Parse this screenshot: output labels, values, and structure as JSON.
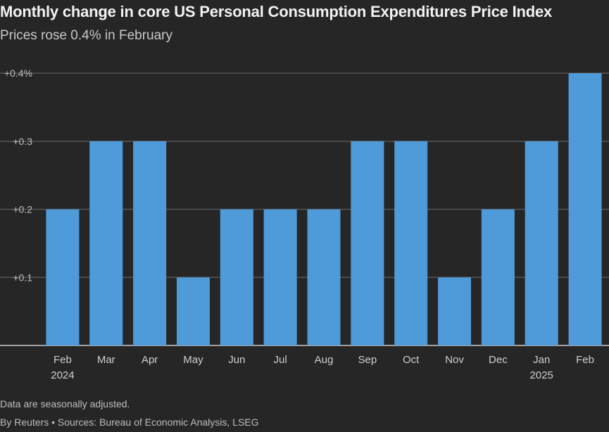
{
  "chart_data": {
    "type": "bar",
    "title": "Monthly change in core US Personal Consumption Expenditures Price Index",
    "subtitle": "Prices rose 0.4% in February",
    "categories": [
      "Feb",
      "Mar",
      "Apr",
      "May",
      "Jun",
      "Jul",
      "Aug",
      "Sep",
      "Oct",
      "Nov",
      "Dec",
      "Jan",
      "Feb"
    ],
    "year_labels": [
      "2024",
      "",
      "",
      "",
      "",
      "",
      "",
      "",
      "",
      "",
      "",
      "2025",
      ""
    ],
    "values": [
      0.2,
      0.3,
      0.3,
      0.1,
      0.2,
      0.2,
      0.2,
      0.3,
      0.3,
      0.1,
      0.2,
      0.3,
      0.4
    ],
    "yticks": [
      {
        "value": 0.4,
        "label": "+0.4%"
      },
      {
        "value": 0.3,
        "label": "+0.3"
      },
      {
        "value": 0.2,
        "label": "+0.2"
      },
      {
        "value": 0.1,
        "label": "+0.1"
      }
    ],
    "ylim": [
      0,
      0.4
    ],
    "grid": true,
    "bar_color": "#4f9bd9",
    "grid_color": "#555555",
    "baseline_color": "#c8c8c8"
  },
  "footer": {
    "note": "Data are seasonally adjusted.",
    "source": "By Reuters • Sources: Bureau of Economic Analysis, LSEG"
  }
}
